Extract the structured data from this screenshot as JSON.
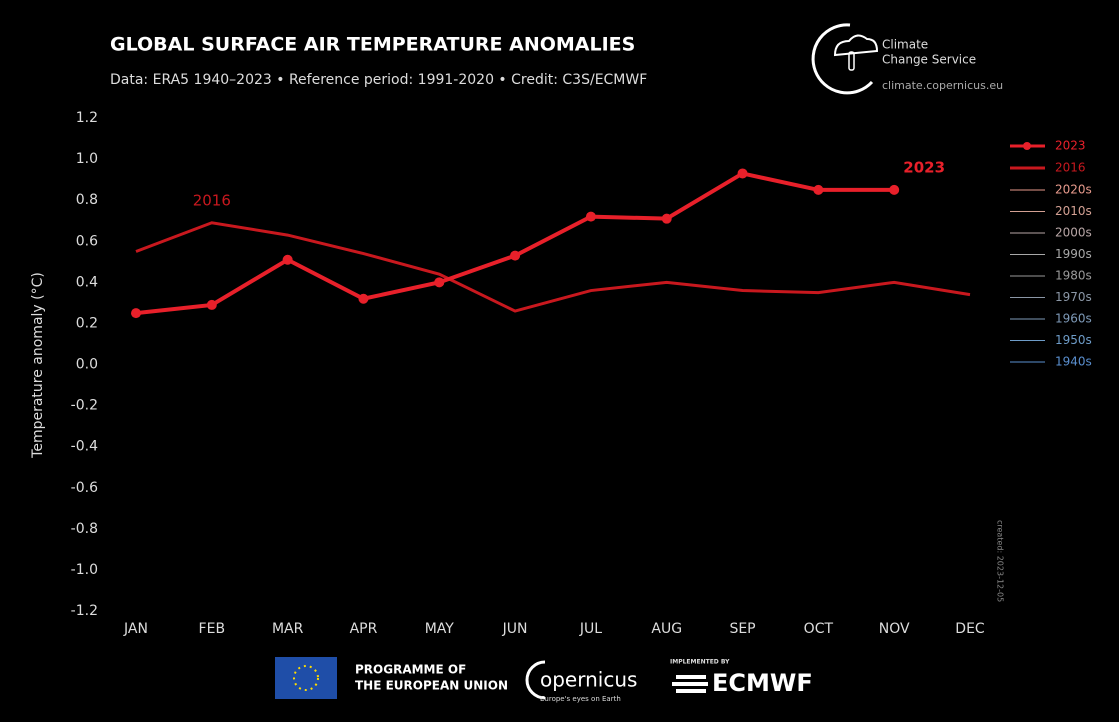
{
  "header": {
    "logo_line1": "Climate",
    "logo_line2": "Change Service",
    "logo_url": "climate.copernicus.eu"
  },
  "chart_data": {
    "type": "line",
    "title": "GLOBAL SURFACE AIR TEMPERATURE ANOMALIES",
    "subtitle": "Data: ERA5 1940–2023 • Reference period: 1991-2020 • Credit: C3S/ECMWF",
    "y_label": "Temperature anomaly (°C)",
    "categories": [
      "JAN",
      "FEB",
      "MAR",
      "APR",
      "MAY",
      "JUN",
      "JUL",
      "AUG",
      "SEP",
      "OCT",
      "NOV",
      "DEC"
    ],
    "series": [
      {
        "name": "2023",
        "color": "#e8202a",
        "marker": true,
        "values": [
          0.25,
          0.29,
          0.51,
          0.32,
          0.4,
          0.53,
          0.72,
          0.71,
          0.93,
          0.85,
          0.85,
          null
        ]
      },
      {
        "name": "2016",
        "color": "#c8181e",
        "marker": false,
        "values": [
          0.55,
          0.69,
          0.63,
          0.54,
          0.44,
          0.26,
          0.36,
          0.4,
          0.36,
          0.35,
          0.4,
          0.34
        ]
      }
    ],
    "annotations": [
      {
        "text": "2016",
        "series": 1,
        "index": 1
      },
      {
        "text": "2023",
        "series": 0,
        "index": 10
      }
    ],
    "legend_extra": [
      {
        "name": "2020s",
        "color": "#e79a8c"
      },
      {
        "name": "2010s",
        "color": "#d3a093"
      },
      {
        "name": "2000s",
        "color": "#b8a6a6"
      },
      {
        "name": "1990s",
        "color": "#a8a8a8"
      },
      {
        "name": "1980s",
        "color": "#9a9a9a"
      },
      {
        "name": "1970s",
        "color": "#8b97a6"
      },
      {
        "name": "1960s",
        "color": "#7e9ab8"
      },
      {
        "name": "1950s",
        "color": "#6e9cc8"
      },
      {
        "name": "1940s",
        "color": "#5a8fcf"
      }
    ],
    "legend": "right",
    "ylim": [
      -1.2,
      1.2
    ],
    "yticks": [
      1.2,
      {
        "value": 1,
        "label": "1.0"
      },
      0.8,
      0.6,
      0.4,
      0.2,
      {
        "value": 0,
        "label": "0.0"
      },
      -0.2,
      -0.4,
      -0.6,
      -0.8,
      {
        "value": -1,
        "label": "-1.0"
      },
      -1.2
    ],
    "created": "created: 2023-12-05"
  },
  "footer": {
    "eu_line1": "PROGRAMME OF",
    "eu_line2": "THE EUROPEAN UNION",
    "copernicus": "opernicus",
    "copernicus_tag": "Europe's eyes on Earth",
    "implemented": "IMPLEMENTED BY",
    "ecmwf": "ECMWF"
  }
}
